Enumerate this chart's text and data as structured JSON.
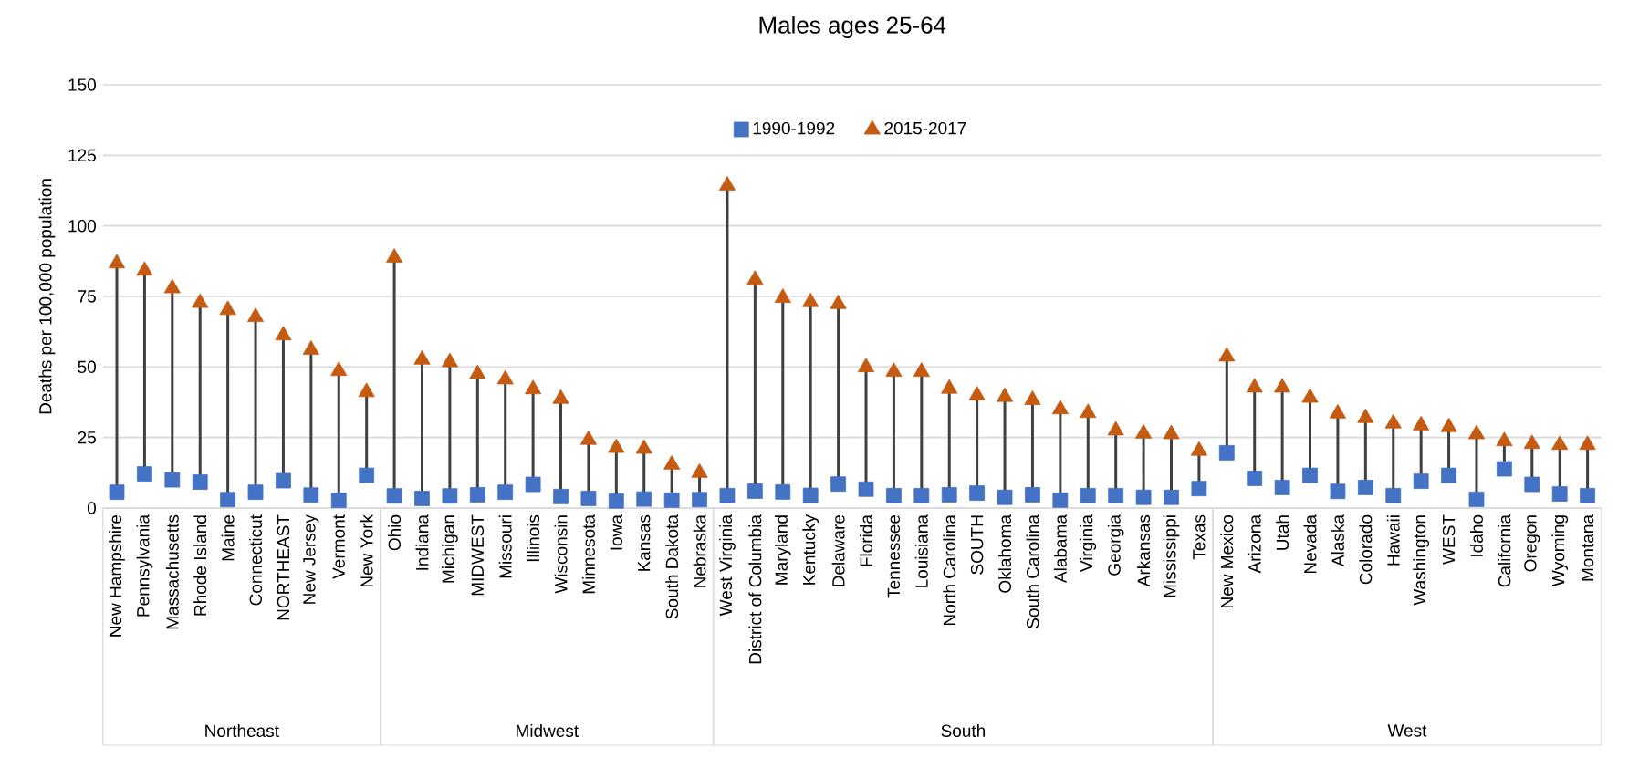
{
  "chart_data": {
    "type": "scatter",
    "title": "Males ages 25-64",
    "ylabel": "Deaths per 100,000 population",
    "categories": [
      "New Hampshire",
      "Pennsylvania",
      "Massachusetts",
      "Rhode Island",
      "Maine",
      "Connecticut",
      "NORTHEAST",
      "New Jersey",
      "Vermont",
      "New York",
      "Ohio",
      "Indiana",
      "Michigan",
      "MIDWEST",
      "Missouri",
      "Illinois",
      "Wisconsin",
      "Minnesota",
      "Iowa",
      "Kansas",
      "South Dakota",
      "Nebraska",
      "West Virginia",
      "District of Columbia",
      "Maryland",
      "Kentucky",
      "Delaware",
      "Florida",
      "Tennessee",
      "Louisiana",
      "North Carolina",
      "SOUTH",
      "Oklahoma",
      "South Carolina",
      "Alabama",
      "Virginia",
      "Georgia",
      "Arkansas",
      "Mississippi",
      "Texas",
      "New Mexico",
      "Arizona",
      "Utah",
      "Nevada",
      "Alaska",
      "Colorado",
      "Hawaii",
      "Washington",
      "WEST",
      "Idaho",
      "California",
      "Oregon",
      "Wyoming",
      "Montana"
    ],
    "series": [
      {
        "name": "1990-1992",
        "color": "#4472c4",
        "marker": "square",
        "values": [
          5.6,
          12.1,
          10.0,
          9.2,
          3.0,
          5.6,
          9.7,
          4.6,
          2.7,
          11.6,
          4.3,
          3.4,
          4.3,
          4.7,
          5.6,
          8.4,
          4.1,
          3.4,
          2.5,
          3.2,
          2.8,
          3.0,
          4.4,
          6.0,
          5.7,
          4.5,
          8.5,
          6.7,
          4.4,
          4.4,
          4.7,
          5.3,
          3.8,
          4.7,
          2.8,
          4.4,
          4.4,
          3.8,
          3.8,
          6.9,
          19.6,
          10.5,
          7.3,
          11.6,
          5.9,
          7.3,
          4.4,
          9.5,
          11.6,
          3.1,
          13.9,
          8.4,
          5.0,
          4.4
        ]
      },
      {
        "name": "2015-2017",
        "color": "#c55a11",
        "marker": "triangle",
        "values": [
          86.7,
          84.1,
          77.9,
          72.7,
          70.2,
          67.7,
          61.2,
          56.1,
          48.6,
          41.1,
          88.7,
          52.6,
          51.7,
          47.5,
          45.6,
          42.1,
          38.7,
          24.2,
          21.3,
          21.0,
          15.4,
          12.5,
          114.3,
          80.9,
          74.5,
          73.0,
          72.3,
          49.9,
          48.3,
          48.3,
          42.3,
          39.9,
          39.4,
          38.3,
          35.0,
          33.7,
          27.5,
          26.4,
          26.2,
          20.3,
          53.7,
          42.7,
          42.7,
          39.1,
          33.5,
          31.9,
          30.0,
          29.3,
          28.7,
          26.2,
          23.7,
          22.7,
          22.4,
          22.4
        ]
      }
    ],
    "ylim": [
      0,
      150
    ],
    "yticks": [
      0,
      25,
      50,
      75,
      100,
      125,
      150
    ],
    "grid": "y",
    "legend": "top",
    "annotations": [
      "Northeast",
      "Midwest",
      "South",
      "West"
    ]
  }
}
